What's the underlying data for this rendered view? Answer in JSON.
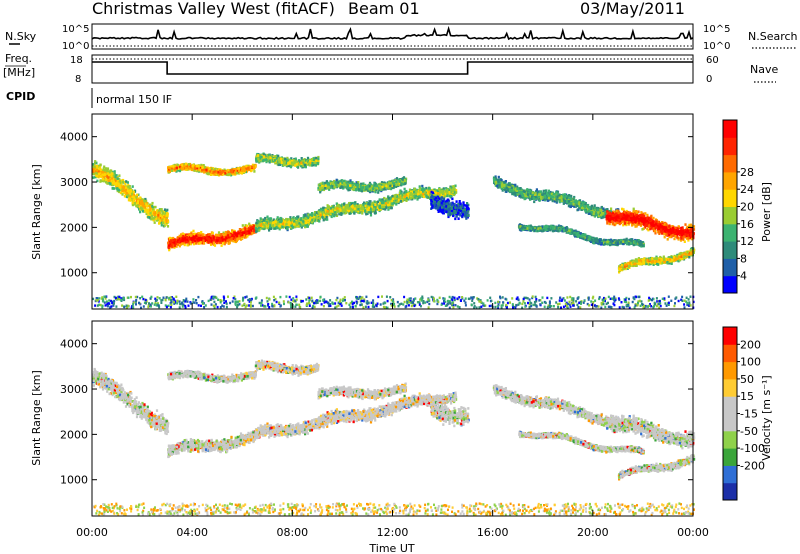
{
  "header": {
    "title": "Christmas Valley West (fitACF)",
    "beam": "Beam 01",
    "date": "03/May/2011"
  },
  "summary_panels": {
    "nsky_label": "N.Sky",
    "nsky_ticks": [
      "10^5",
      "10^0"
    ],
    "nsearch_label": "N.Search",
    "freq_label_line1": "Freq.",
    "freq_label_line2": "[MHz]",
    "freq_ticks": [
      "18",
      "8"
    ],
    "nave_label": "Nave",
    "nave_ticks": [
      "60",
      "0"
    ],
    "cpid_label": "CPID",
    "cpid_value": "normal 150 IF",
    "colors": {
      "line": "#000000"
    }
  },
  "chart_data": [
    {
      "type": "heatmap",
      "name": "power",
      "ylabel": "Slant Range [km]",
      "xlabel": "",
      "x_ticks": [
        "00:00",
        "04:00",
        "08:00",
        "12:00",
        "16:00",
        "20:00",
        "00:00"
      ],
      "xlim_hours": [
        0,
        24
      ],
      "ylim": [
        200,
        4500
      ],
      "y_ticks": [
        1000,
        2000,
        3000,
        4000
      ],
      "colorbar": {
        "label": "Power [dB]",
        "ticks": [
          "4",
          "8",
          "12",
          "16",
          "20",
          "24",
          "28"
        ],
        "colors": [
          "#0000ff",
          "#1f5fa8",
          "#2e8b7a",
          "#3cb371",
          "#9acd32",
          "#ffd700",
          "#ffa500",
          "#ff6a00",
          "#ff2400",
          "#ff0000"
        ]
      },
      "features": [
        {
          "t0": 0.0,
          "t1": 3.0,
          "r0": 3300,
          "r1": 2200,
          "width": 500,
          "level": 0.55
        },
        {
          "t0": 3.0,
          "t1": 6.5,
          "r0": 1650,
          "r1": 1950,
          "width": 350,
          "level": 0.85
        },
        {
          "t0": 6.5,
          "t1": 14.5,
          "r0": 2000,
          "r1": 2900,
          "width": 350,
          "level": 0.45
        },
        {
          "t0": 3.0,
          "t1": 6.5,
          "r0": 3300,
          "r1": 3300,
          "width": 200,
          "level": 0.65
        },
        {
          "t0": 6.5,
          "t1": 9.0,
          "r0": 3500,
          "r1": 3500,
          "width": 250,
          "level": 0.45
        },
        {
          "t0": 9.0,
          "t1": 12.5,
          "r0": 2900,
          "r1": 3000,
          "width": 250,
          "level": 0.4
        },
        {
          "t0": 13.5,
          "t1": 15.0,
          "r0": 2600,
          "r1": 2400,
          "width": 500,
          "level": 0.15
        },
        {
          "t0": 16.0,
          "t1": 21.0,
          "r0": 3000,
          "r1": 2300,
          "width": 300,
          "level": 0.35
        },
        {
          "t0": 17.0,
          "t1": 22.0,
          "r0": 2100,
          "r1": 1600,
          "width": 150,
          "level": 0.3
        },
        {
          "t0": 20.5,
          "t1": 24.0,
          "r0": 2300,
          "r1": 1900,
          "width": 450,
          "level": 0.9
        },
        {
          "t0": 21.0,
          "t1": 24.0,
          "r0": 1100,
          "r1": 1500,
          "width": 200,
          "level": 0.55
        }
      ]
    },
    {
      "type": "heatmap",
      "name": "velocity",
      "ylabel": "Slant Range [km]",
      "xlabel": "Time UT",
      "x_ticks": [
        "00:00",
        "04:00",
        "08:00",
        "12:00",
        "16:00",
        "20:00",
        "00:00"
      ],
      "xlim_hours": [
        0,
        24
      ],
      "ylim": [
        200,
        4500
      ],
      "y_ticks": [
        1000,
        2000,
        3000,
        4000
      ],
      "colorbar": {
        "label": "Velocity [m s⁻¹]",
        "ticks": [
          "200",
          "100",
          "50",
          "15",
          "-15",
          "-50",
          "-100",
          "-200"
        ],
        "colors": [
          "#1c2fa8",
          "#2f6fd6",
          "#3aa53a",
          "#8fd14a",
          "#c8c8c8",
          "#c8c8c8",
          "#ffcc33",
          "#ff9900",
          "#ff5a00",
          "#ff0000"
        ]
      }
    }
  ]
}
